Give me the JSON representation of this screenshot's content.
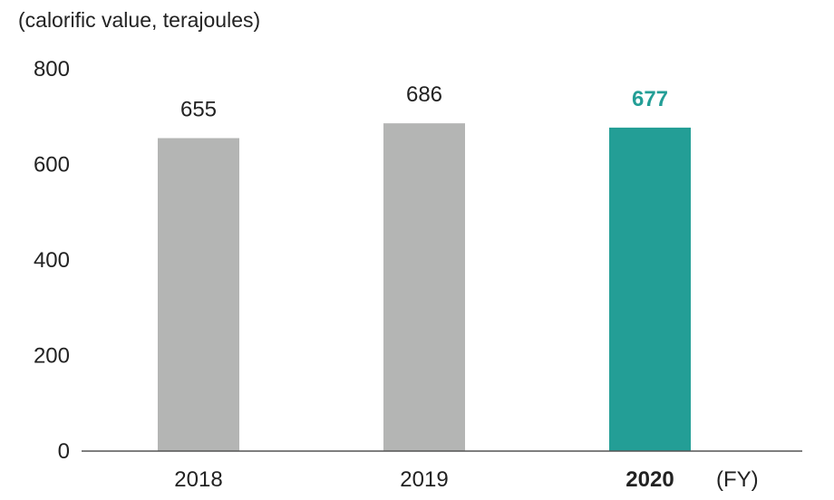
{
  "chart_data": {
    "type": "bar",
    "unit_label": "(calorific value, terajoules)",
    "xlabel": "(FY)",
    "ylabel": "",
    "categories": [
      "2018",
      "2019",
      "2020"
    ],
    "values": [
      655,
      686,
      677
    ],
    "data_labels": [
      "655",
      "686",
      "677"
    ],
    "yticks": [
      "0",
      "200",
      "400",
      "600",
      "800"
    ],
    "ylim": [
      0,
      800
    ],
    "grid": false,
    "highlight_index": 2,
    "colors": {
      "bar": "#b4b5b4",
      "highlight_bar": "#239e96",
      "highlight_label": "#239e96",
      "axis": "#555555",
      "text": "#222222"
    }
  }
}
